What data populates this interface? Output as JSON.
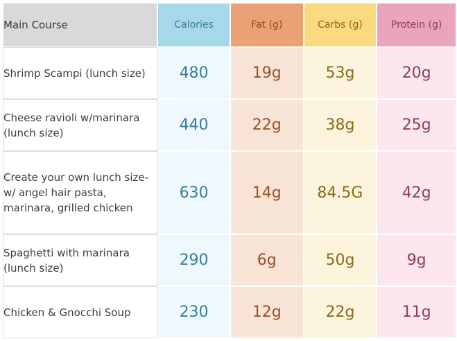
{
  "headers": {
    "course": "Main Course",
    "calories": "Calories",
    "fat": "Fat (g)",
    "carbs": "Carbs (g)",
    "protein": "Protein (g)"
  },
  "rows": [
    {
      "name": "Shrimp Scampi (lunch size)",
      "calories": "480",
      "fat": "19g",
      "carbs": "53g",
      "protein": "20g"
    },
    {
      "name": "Cheese ravioli w/marinara (lunch size)",
      "calories": "440",
      "fat": "22g",
      "carbs": "38g",
      "protein": "25g"
    },
    {
      "name": "Create your own lunch size- w/ angel hair pasta, marinara, grilled chicken",
      "calories": "630",
      "fat": "14g",
      "carbs": "84.5G",
      "protein": "42g"
    },
    {
      "name": "Spaghetti with marinara (lunch size)",
      "calories": "290",
      "fat": "6g",
      "carbs": "50g",
      "protein": "9g"
    },
    {
      "name": "Chicken & Gnocchi Soup",
      "calories": "230",
      "fat": "12g",
      "carbs": "22g",
      "protein": "11g"
    }
  ],
  "colors": {
    "course_header_bg": "#d9d9d9",
    "calories_header_bg": "#a6d8ea",
    "fat_header_bg": "#eba176",
    "carbs_header_bg": "#fbd97e",
    "protein_header_bg": "#eba4bd",
    "calories_text": "#3a7e9b",
    "fat_text": "#9c5024",
    "carbs_text": "#8a6a1c",
    "protein_text": "#8e3f5c"
  }
}
